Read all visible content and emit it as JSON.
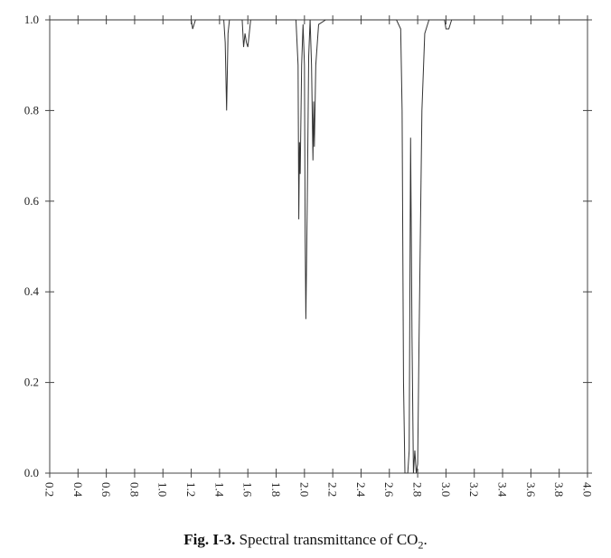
{
  "chart_data": {
    "type": "line",
    "caption_label": "Fig. I-3.",
    "caption_text": "Spectral transmittance of CO",
    "caption_subscript": "2",
    "caption_end": ".",
    "x": [
      0.2,
      1.2,
      1.21,
      1.22,
      1.23,
      1.43,
      1.44,
      1.45,
      1.46,
      1.47,
      1.56,
      1.57,
      1.58,
      1.59,
      1.6,
      1.61,
      1.62,
      1.94,
      1.955,
      1.96,
      1.965,
      1.97,
      1.98,
      1.99,
      2.0,
      2.005,
      2.01,
      2.02,
      2.03,
      2.04,
      2.05,
      2.06,
      2.065,
      2.07,
      2.08,
      2.1,
      2.15,
      2.65,
      2.68,
      2.69,
      2.7,
      2.71,
      2.73,
      2.74,
      2.75,
      2.76,
      2.77,
      2.78,
      2.79,
      2.8,
      2.81,
      2.83,
      2.85,
      2.88,
      2.99,
      3.0,
      3.02,
      3.04,
      4.0
    ],
    "series": [
      {
        "color": "#333333",
        "values": [
          1.0,
          1.0,
          0.98,
          0.99,
          1.0,
          1.0,
          0.95,
          0.8,
          0.97,
          1.0,
          1.0,
          0.94,
          0.97,
          0.95,
          0.94,
          0.97,
          1.0,
          1.0,
          0.9,
          0.56,
          0.73,
          0.66,
          0.9,
          0.99,
          0.9,
          0.52,
          0.34,
          0.6,
          0.92,
          1.0,
          0.9,
          0.69,
          0.82,
          0.72,
          0.9,
          0.99,
          1.0,
          1.0,
          0.98,
          0.8,
          0.2,
          0.0,
          0.0,
          0.05,
          0.74,
          0.3,
          0.0,
          0.05,
          0.0,
          0.02,
          0.3,
          0.8,
          0.97,
          1.0,
          1.0,
          0.98,
          0.98,
          1.0,
          1.0
        ]
      }
    ],
    "xlim": [
      0.2,
      4.0
    ],
    "ylim": [
      0,
      1
    ],
    "xticks": [
      0.2,
      0.4,
      0.6,
      0.8,
      {
        "value": 1,
        "label": "1.0"
      },
      1.2,
      1.4,
      1.6,
      1.8,
      {
        "value": 2,
        "label": "2.0"
      },
      2.2,
      2.4,
      2.6,
      2.8,
      {
        "value": 3,
        "label": "3.0"
      },
      3.2,
      3.4,
      3.6,
      3.8,
      {
        "value": 4,
        "label": "4.0"
      }
    ],
    "yticks": [
      {
        "value": 0,
        "label": "0.0"
      },
      0.2,
      0.4,
      0.6,
      0.8,
      {
        "value": 1,
        "label": "1.0"
      }
    ],
    "grid": false
  }
}
